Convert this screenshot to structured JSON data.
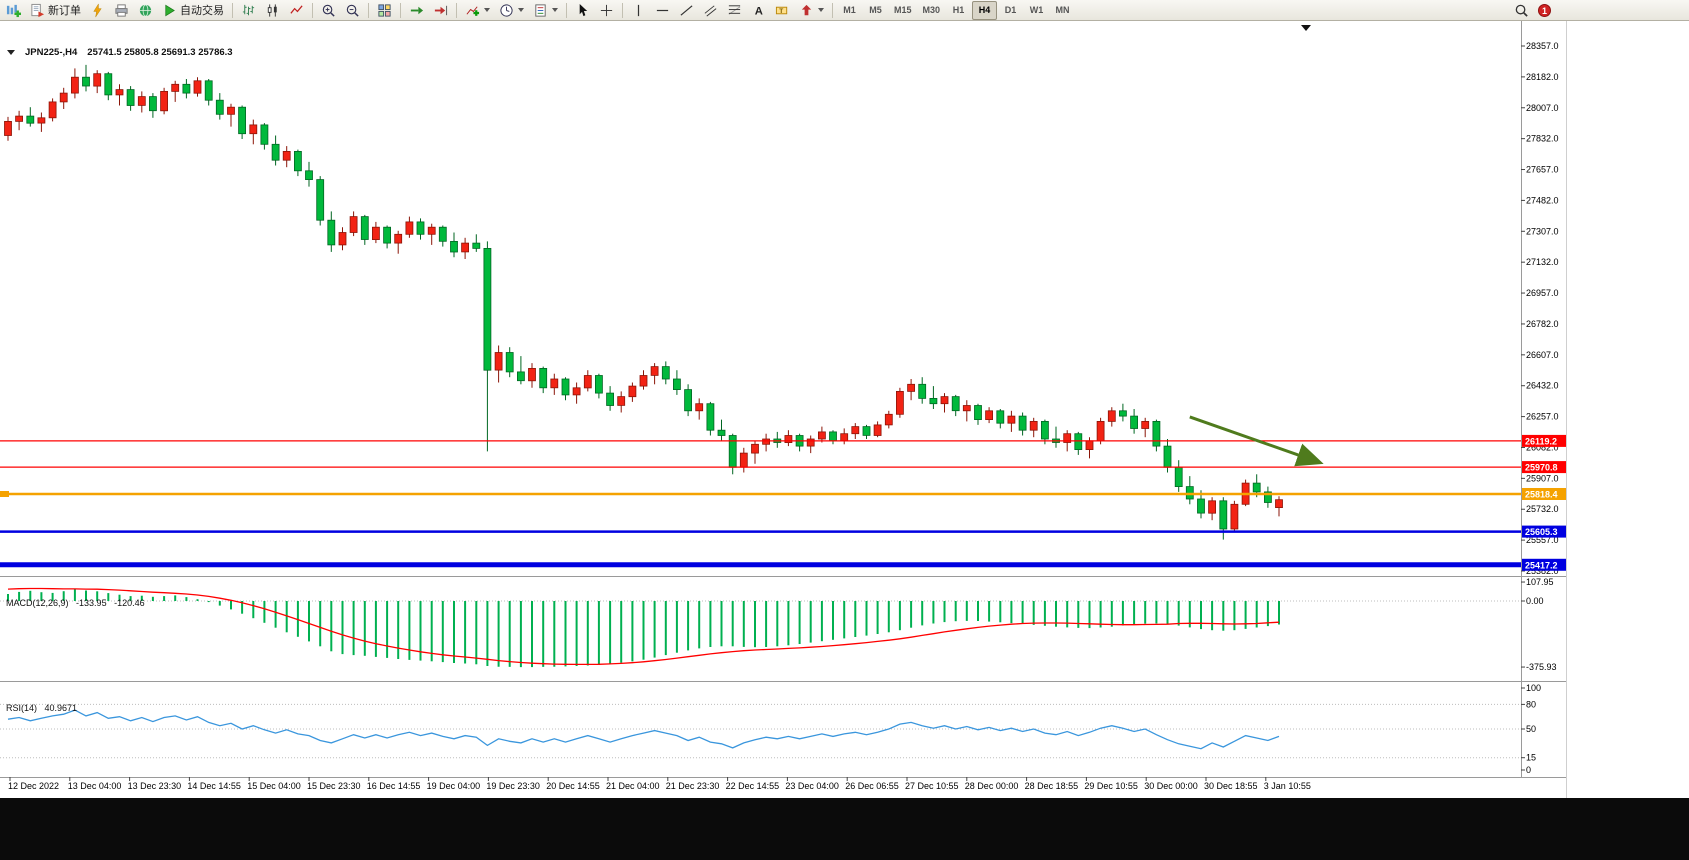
{
  "toolbar": {
    "new_order_label": "新订单",
    "autotrading_label": "自动交易",
    "text_tool_glyph": "A",
    "label_tool_glyph": "T",
    "timeframes": [
      "M1",
      "M5",
      "M15",
      "M30",
      "H1",
      "H4",
      "D1",
      "W1",
      "MN"
    ],
    "active_timeframe": "H4",
    "notification_count": "1"
  },
  "chart": {
    "symbol_period": "JPN225-,H4",
    "ohlc_label": "25741.5 25805.8 25691.3 25786.3",
    "price_axis": {
      "max": 28357.0,
      "min": 25382.0,
      "step": 175.0,
      "labels": [
        "28357.0",
        "28182.0",
        "28007.0",
        "27832.0",
        "27657.0",
        "27482.0",
        "27307.0",
        "27132.0",
        "26957.0",
        "26782.0",
        "26607.0",
        "26432.0",
        "26257.0",
        "26082.0",
        "25907.0",
        "25732.0",
        "25557.0",
        "25382.0"
      ]
    },
    "hlines": [
      {
        "value": 26119.2,
        "label": "26119.2",
        "color": "#ff0000",
        "width": 1.3
      },
      {
        "value": 25970.8,
        "label": "25970.8",
        "color": "#ff0000",
        "width": 1.3
      },
      {
        "value": 25818.4,
        "label": "25818.4",
        "color": "#f5a200",
        "width": 2.5
      },
      {
        "value": 25605.3,
        "label": "25605.3",
        "color": "#0000e0",
        "width": 2.5
      },
      {
        "value": 25417.2,
        "label": "25417.2",
        "color": "#0000e0",
        "width": 5
      }
    ],
    "arrow": {
      "from_index": 106,
      "from_price": 26255,
      "to_index": 117.5,
      "to_price": 26000,
      "color": "#4f7b1d"
    },
    "colors": {
      "up": "#f22314",
      "up_border": "#8b1508",
      "down": "#00b93c",
      "down_border": "#006622",
      "macd_hist": "#00b050",
      "macd_signal": "#ff0000",
      "rsi_line": "#3a96dd"
    },
    "time_labels": [
      "12 Dec 2022",
      "13 Dec 04:00",
      "13 Dec 23:30",
      "14 Dec 14:55",
      "15 Dec 04:00",
      "15 Dec 23:30",
      "16 Dec 14:55",
      "19 Dec 04:00",
      "19 Dec 23:30",
      "20 Dec 14:55",
      "21 Dec 04:00",
      "21 Dec 23:30",
      "22 Dec 14:55",
      "23 Dec 04:00",
      "26 Dec 06:55",
      "27 Dec 10:55",
      "28 Dec 00:00",
      "28 Dec 18:55",
      "29 Dec 10:55",
      "30 Dec 00:00",
      "30 Dec 18:55",
      "3 Jan 10:55"
    ],
    "candles": [
      [
        27850,
        27955,
        27820,
        27930
      ],
      [
        27930,
        27990,
        27880,
        27960
      ],
      [
        27960,
        28010,
        27900,
        27920
      ],
      [
        27920,
        27980,
        27870,
        27950
      ],
      [
        27950,
        28060,
        27930,
        28040
      ],
      [
        28040,
        28120,
        28000,
        28090
      ],
      [
        28090,
        28230,
        28060,
        28180
      ],
      [
        28180,
        28250,
        28100,
        28130
      ],
      [
        28130,
        28220,
        28090,
        28200
      ],
      [
        28200,
        28210,
        28050,
        28080
      ],
      [
        28080,
        28140,
        28020,
        28110
      ],
      [
        28110,
        28130,
        27990,
        28020
      ],
      [
        28020,
        28100,
        27980,
        28070
      ],
      [
        28070,
        28090,
        27950,
        27990
      ],
      [
        27990,
        28120,
        27970,
        28100
      ],
      [
        28100,
        28160,
        28040,
        28140
      ],
      [
        28140,
        28170,
        28060,
        28090
      ],
      [
        28090,
        28180,
        28070,
        28160
      ],
      [
        28160,
        28170,
        28020,
        28050
      ],
      [
        28050,
        28090,
        27940,
        27970
      ],
      [
        27970,
        28030,
        27900,
        28010
      ],
      [
        28010,
        28020,
        27830,
        27860
      ],
      [
        27860,
        27940,
        27800,
        27910
      ],
      [
        27910,
        27920,
        27770,
        27800
      ],
      [
        27800,
        27850,
        27680,
        27710
      ],
      [
        27710,
        27790,
        27670,
        27760
      ],
      [
        27760,
        27770,
        27620,
        27650
      ],
      [
        27650,
        27700,
        27560,
        27600
      ],
      [
        27600,
        27620,
        27340,
        27370
      ],
      [
        27370,
        27420,
        27190,
        27230
      ],
      [
        27230,
        27330,
        27200,
        27300
      ],
      [
        27300,
        27420,
        27280,
        27390
      ],
      [
        27390,
        27400,
        27230,
        27260
      ],
      [
        27260,
        27360,
        27240,
        27330
      ],
      [
        27330,
        27340,
        27210,
        27240
      ],
      [
        27240,
        27310,
        27180,
        27290
      ],
      [
        27290,
        27390,
        27270,
        27360
      ],
      [
        27360,
        27380,
        27260,
        27290
      ],
      [
        27290,
        27350,
        27230,
        27330
      ],
      [
        27330,
        27340,
        27220,
        27250
      ],
      [
        27250,
        27300,
        27160,
        27190
      ],
      [
        27190,
        27270,
        27150,
        27240
      ],
      [
        27240,
        27290,
        27190,
        27210
      ],
      [
        27210,
        27250,
        26060,
        26520
      ],
      [
        26520,
        26660,
        26450,
        26620
      ],
      [
        26620,
        26650,
        26480,
        26510
      ],
      [
        26510,
        26600,
        26440,
        26460
      ],
      [
        26460,
        26560,
        26420,
        26530
      ],
      [
        26530,
        26540,
        26390,
        26420
      ],
      [
        26420,
        26500,
        26380,
        26470
      ],
      [
        26470,
        26480,
        26350,
        26380
      ],
      [
        26380,
        26450,
        26330,
        26420
      ],
      [
        26420,
        26520,
        26400,
        26490
      ],
      [
        26490,
        26500,
        26360,
        26390
      ],
      [
        26390,
        26430,
        26290,
        26320
      ],
      [
        26320,
        26400,
        26280,
        26370
      ],
      [
        26370,
        26450,
        26340,
        26430
      ],
      [
        26430,
        26520,
        26410,
        26490
      ],
      [
        26490,
        26560,
        26440,
        26540
      ],
      [
        26540,
        26570,
        26440,
        26470
      ],
      [
        26470,
        26520,
        26380,
        26410
      ],
      [
        26410,
        26440,
        26260,
        26290
      ],
      [
        26290,
        26360,
        26240,
        26330
      ],
      [
        26330,
        26340,
        26150,
        26180
      ],
      [
        26180,
        26240,
        26120,
        26150
      ],
      [
        26150,
        26160,
        25930,
        25970
      ],
      [
        25970,
        26080,
        25940,
        26050
      ],
      [
        26050,
        26120,
        25990,
        26100
      ],
      [
        26100,
        26160,
        26060,
        26130
      ],
      [
        26130,
        26170,
        26080,
        26110
      ],
      [
        26110,
        26180,
        26090,
        26150
      ],
      [
        26150,
        26160,
        26060,
        26090
      ],
      [
        26090,
        26150,
        26050,
        26130
      ],
      [
        26130,
        26200,
        26110,
        26170
      ],
      [
        26170,
        26180,
        26100,
        26120
      ],
      [
        26120,
        26190,
        26100,
        26160
      ],
      [
        26160,
        26220,
        26130,
        26200
      ],
      [
        26200,
        26210,
        26130,
        26150
      ],
      [
        26150,
        26230,
        26140,
        26210
      ],
      [
        26210,
        26290,
        26190,
        26270
      ],
      [
        26270,
        26420,
        26250,
        26400
      ],
      [
        26400,
        26470,
        26350,
        26440
      ],
      [
        26440,
        26480,
        26330,
        26360
      ],
      [
        26360,
        26430,
        26300,
        26330
      ],
      [
        26330,
        26390,
        26280,
        26370
      ],
      [
        26370,
        26380,
        26260,
        26290
      ],
      [
        26290,
        26350,
        26230,
        26320
      ],
      [
        26320,
        26330,
        26210,
        26240
      ],
      [
        26240,
        26310,
        26220,
        26290
      ],
      [
        26290,
        26300,
        26190,
        26220
      ],
      [
        26220,
        26290,
        26170,
        26260
      ],
      [
        26260,
        26280,
        26150,
        26180
      ],
      [
        26180,
        26250,
        26140,
        26230
      ],
      [
        26230,
        26240,
        26100,
        26130
      ],
      [
        26130,
        26200,
        26080,
        26110
      ],
      [
        26110,
        26180,
        26060,
        26160
      ],
      [
        26160,
        26170,
        26040,
        26070
      ],
      [
        26070,
        26140,
        26020,
        26120
      ],
      [
        26120,
        26250,
        26100,
        26230
      ],
      [
        26230,
        26310,
        26200,
        26290
      ],
      [
        26290,
        26330,
        26230,
        26260
      ],
      [
        26260,
        26300,
        26160,
        26190
      ],
      [
        26190,
        26250,
        26140,
        26230
      ],
      [
        26230,
        26240,
        26060,
        26090
      ],
      [
        26090,
        26130,
        25940,
        25970
      ],
      [
        25970,
        26010,
        25830,
        25860
      ],
      [
        25860,
        25920,
        25760,
        25790
      ],
      [
        25790,
        25840,
        25680,
        25710
      ],
      [
        25710,
        25800,
        25670,
        25780
      ],
      [
        25780,
        25800,
        25560,
        25620
      ],
      [
        25620,
        25780,
        25610,
        25760
      ],
      [
        25760,
        25900,
        25750,
        25880
      ],
      [
        25880,
        25930,
        25800,
        25830
      ],
      [
        25830,
        25860,
        25740,
        25770
      ],
      [
        25741.5,
        25805.8,
        25691.3,
        25786.3
      ]
    ]
  },
  "macd": {
    "name_label": "MACD(12,26,9)",
    "value_main": "-133.95",
    "value_signal": "-120.46",
    "axis_labels": [
      "107.95",
      "0.00",
      "-375.93"
    ],
    "histogram": [
      40,
      52,
      58,
      50,
      46,
      56,
      66,
      60,
      55,
      45,
      36,
      28,
      30,
      24,
      28,
      32,
      22,
      10,
      -6,
      -26,
      -48,
      -72,
      -98,
      -124,
      -152,
      -178,
      -204,
      -230,
      -258,
      -286,
      -302,
      -308,
      -312,
      -318,
      -324,
      -330,
      -335,
      -339,
      -343,
      -348,
      -353,
      -356,
      -360,
      -370,
      -374,
      -375,
      -376,
      -376,
      -375,
      -374,
      -372,
      -370,
      -367,
      -363,
      -358,
      -352,
      -344,
      -334,
      -322,
      -308,
      -294,
      -281,
      -270,
      -262,
      -258,
      -258,
      -261,
      -263,
      -262,
      -258,
      -252,
      -245,
      -237,
      -229,
      -221,
      -213,
      -205,
      -197,
      -188,
      -178,
      -166,
      -152,
      -139,
      -128,
      -120,
      -115,
      -113,
      -114,
      -117,
      -121,
      -126,
      -131,
      -136,
      -141,
      -146,
      -150,
      -153,
      -154,
      -151,
      -146,
      -139,
      -133,
      -129,
      -128,
      -132,
      -140,
      -150,
      -160,
      -166,
      -169,
      -166,
      -159,
      -151,
      -143,
      -133.95
    ],
    "signal": [
      68,
      70,
      71,
      71,
      70,
      69,
      69,
      68,
      67,
      65,
      62,
      58,
      54,
      50,
      47,
      44,
      40,
      34,
      26,
      16,
      4,
      -10,
      -26,
      -44,
      -64,
      -85,
      -106,
      -128,
      -150,
      -172,
      -193,
      -211,
      -228,
      -243,
      -256,
      -268,
      -279,
      -289,
      -298,
      -306,
      -313,
      -319,
      -325,
      -332,
      -339,
      -345,
      -350,
      -354,
      -357,
      -359,
      -360,
      -361,
      -361,
      -360,
      -358,
      -355,
      -351,
      -346,
      -340,
      -333,
      -325,
      -317,
      -309,
      -301,
      -294,
      -288,
      -283,
      -279,
      -276,
      -273,
      -270,
      -267,
      -263,
      -259,
      -254,
      -249,
      -243,
      -237,
      -230,
      -223,
      -215,
      -206,
      -196,
      -186,
      -176,
      -167,
      -158,
      -150,
      -143,
      -137,
      -132,
      -128,
      -126,
      -125,
      -125,
      -126,
      -128,
      -130,
      -132,
      -134,
      -135,
      -135,
      -134,
      -133,
      -132,
      -128,
      -127,
      -127,
      -128,
      -130,
      -131,
      -130,
      -128,
      -124,
      -120.46
    ]
  },
  "rsi": {
    "name_label": "RSI(14)",
    "value": "40.9671",
    "axis_labels": [
      "100",
      "80",
      "50",
      "15",
      "0"
    ],
    "values": [
      62,
      64,
      60,
      63,
      66,
      68,
      73,
      66,
      70,
      63,
      65,
      60,
      64,
      59,
      64,
      66,
      61,
      65,
      58,
      54,
      57,
      50,
      54,
      49,
      45,
      49,
      44,
      42,
      36,
      33,
      38,
      43,
      39,
      43,
      39,
      43,
      46,
      42,
      45,
      41,
      38,
      42,
      40,
      30,
      38,
      35,
      33,
      38,
      34,
      38,
      34,
      38,
      42,
      38,
      34,
      38,
      42,
      45,
      48,
      45,
      42,
      36,
      40,
      34,
      32,
      27,
      33,
      37,
      40,
      38,
      41,
      38,
      41,
      44,
      41,
      44,
      46,
      43,
      46,
      50,
      56,
      58,
      54,
      51,
      54,
      50,
      53,
      49,
      52,
      48,
      51,
      47,
      50,
      45,
      43,
      47,
      42,
      46,
      51,
      54,
      51,
      47,
      50,
      43,
      37,
      32,
      29,
      26,
      33,
      28,
      35,
      42,
      39,
      36,
      40.97
    ]
  }
}
